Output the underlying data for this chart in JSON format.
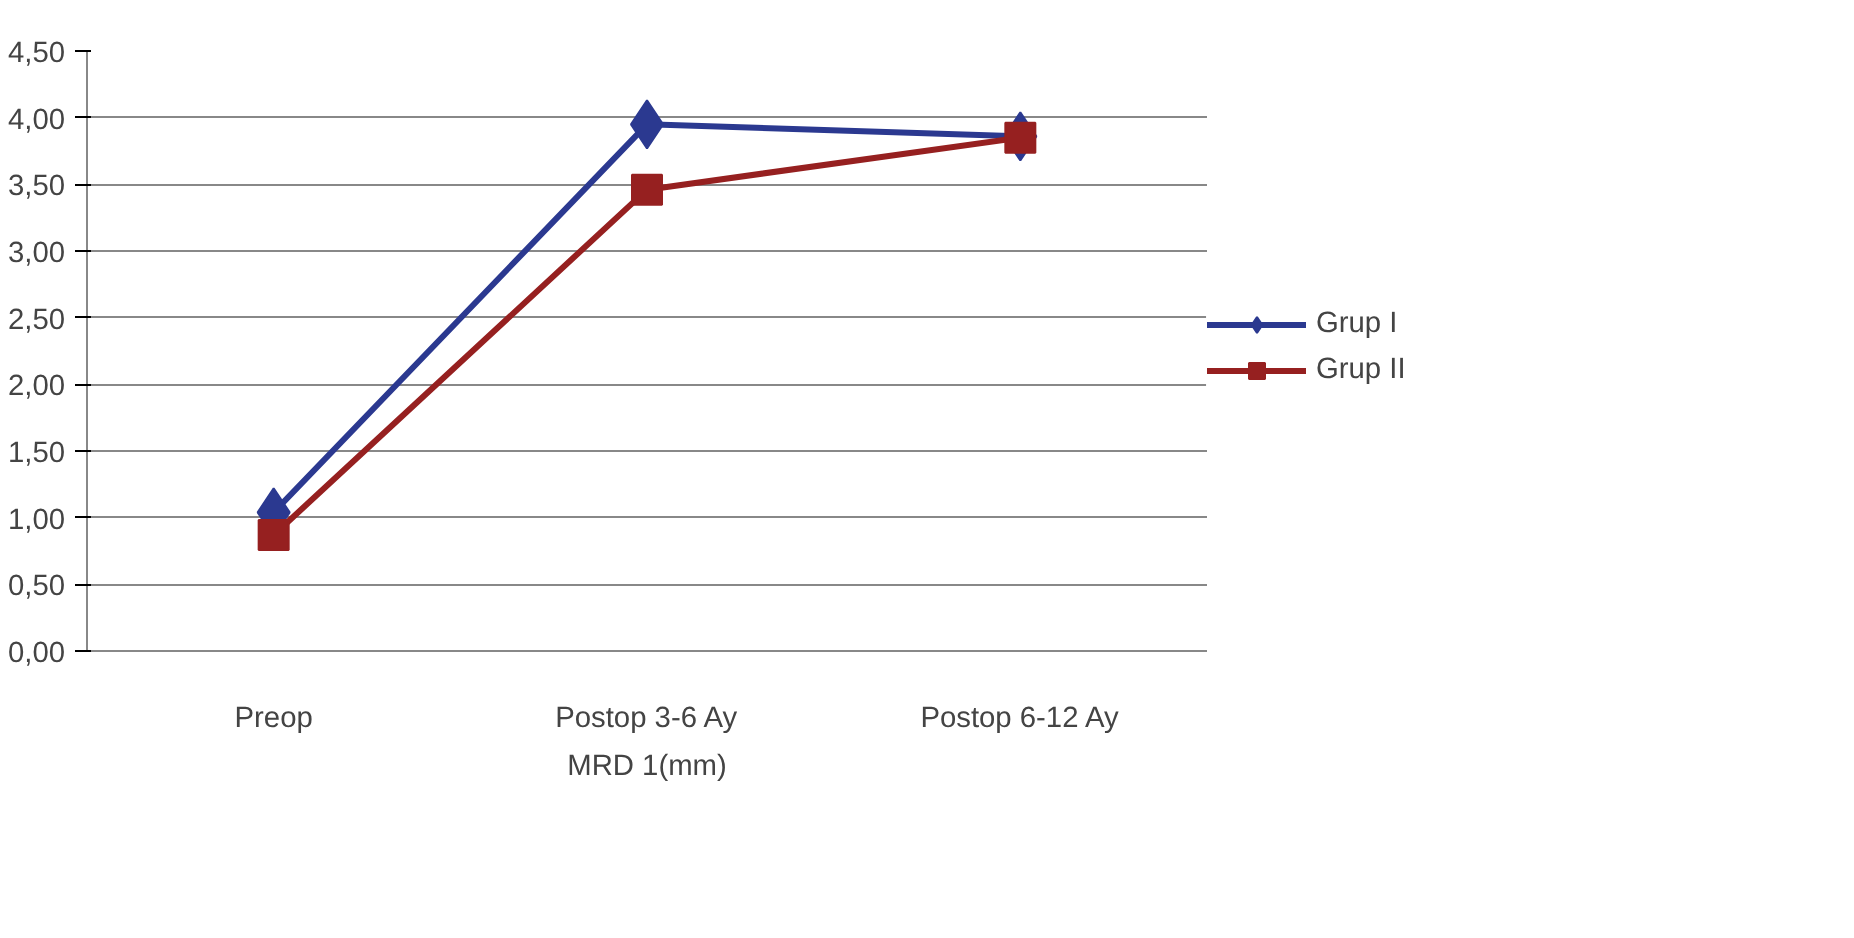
{
  "chart_data": {
    "type": "line",
    "xlabel": "MRD 1(mm)",
    "categories": [
      "Preop",
      "Postop 3-6 Ay",
      "Postop 6-12 Ay"
    ],
    "series": [
      {
        "name": "Grup I",
        "color": "#2b3990",
        "marker": "diamond",
        "values": [
          1.04,
          3.95,
          3.86
        ]
      },
      {
        "name": "Grup II",
        "color": "#962020",
        "marker": "square",
        "values": [
          0.87,
          3.46,
          3.85
        ]
      }
    ],
    "ylim": [
      0,
      4.5
    ],
    "yticks": [
      {
        "value": 0,
        "label": "0,00"
      },
      {
        "value": 0.5,
        "label": "0,50"
      },
      {
        "value": 1,
        "label": "1,00"
      },
      {
        "value": 1.5,
        "label": "1,50"
      },
      {
        "value": 2,
        "label": "2,00"
      },
      {
        "value": 2.5,
        "label": "2,50"
      },
      {
        "value": 3,
        "label": "3,00"
      },
      {
        "value": 3.5,
        "label": "3,50"
      },
      {
        "value": 4,
        "label": "4,00"
      },
      {
        "value": 4.5,
        "label": "4,50"
      }
    ],
    "grid": "y",
    "legend": "right",
    "line_style": "solid"
  }
}
